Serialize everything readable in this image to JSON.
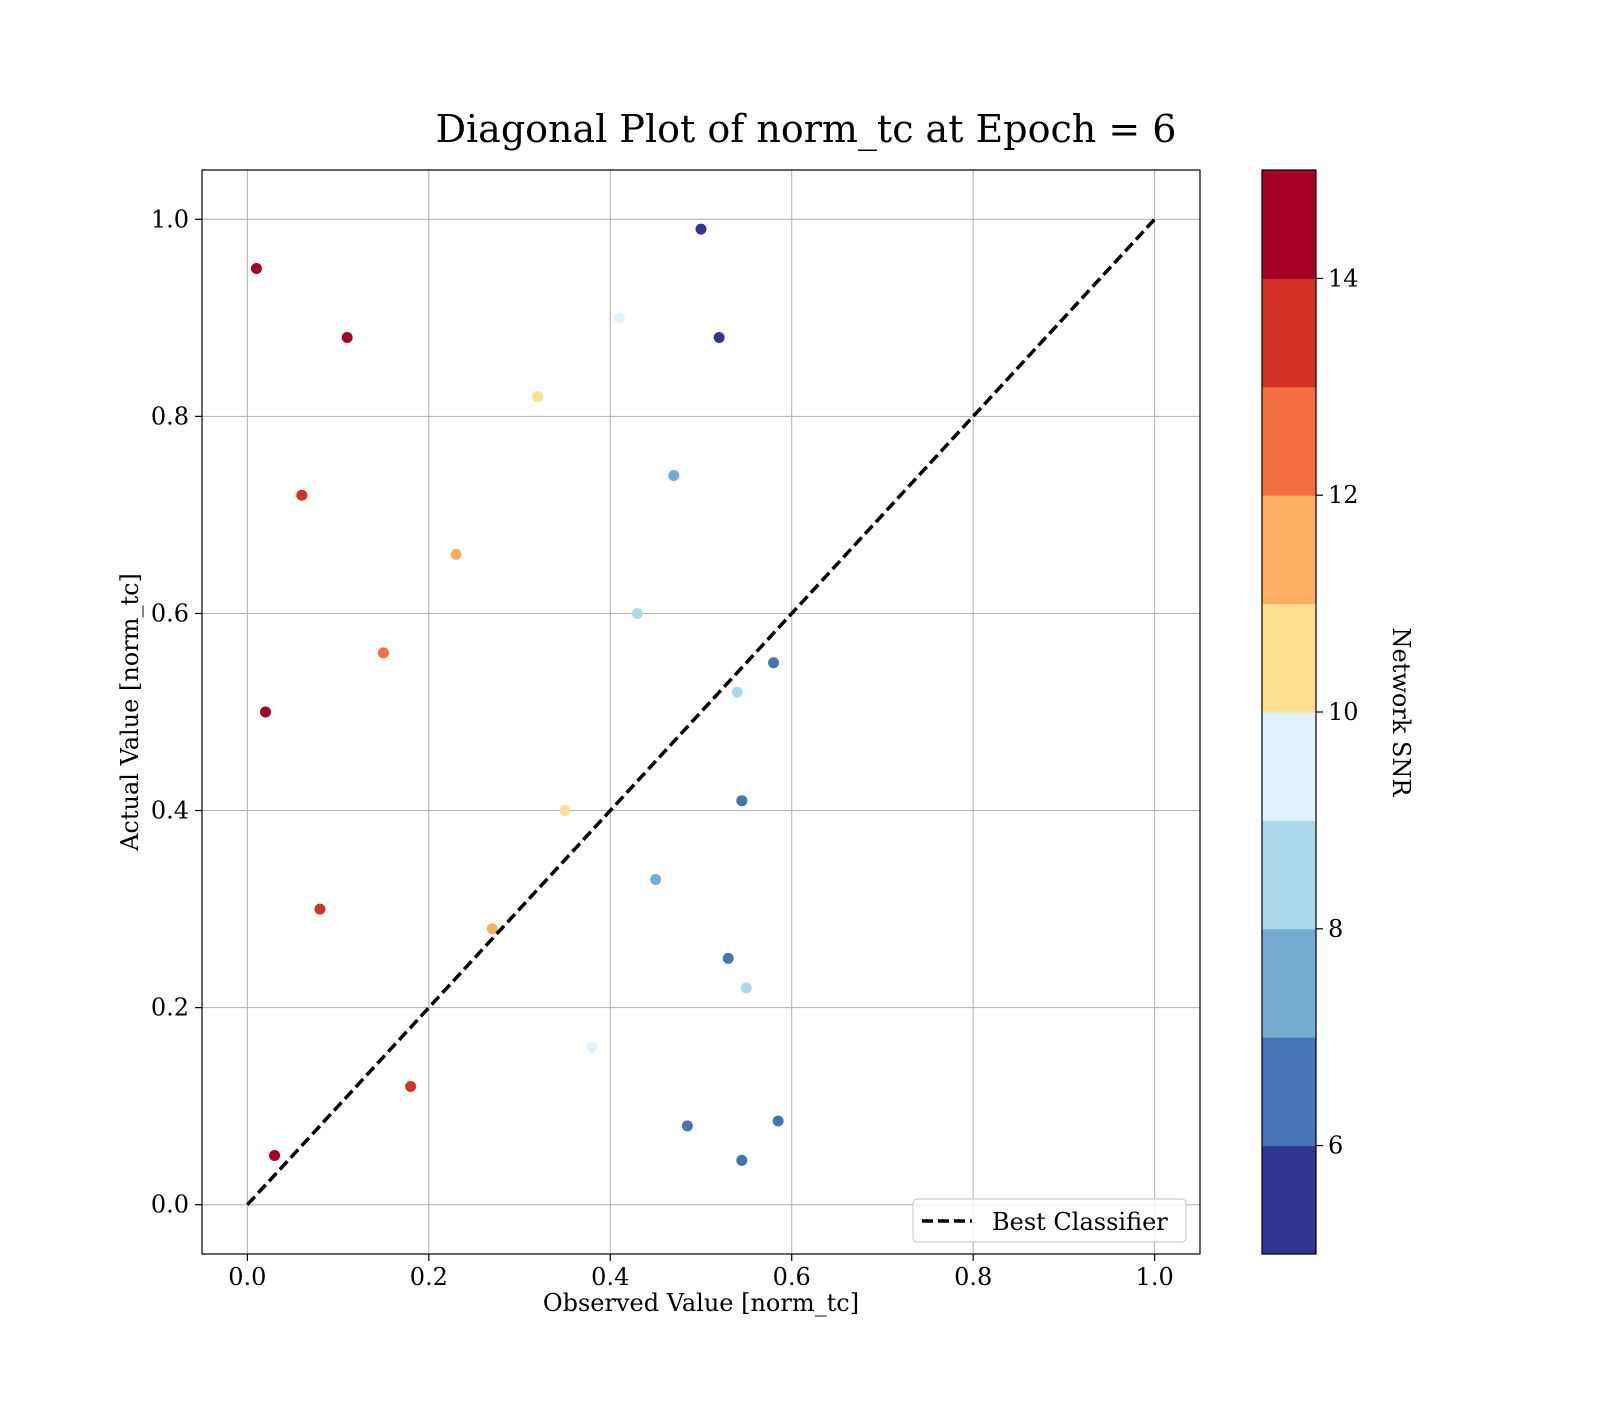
{
  "chart_data": {
    "type": "scatter",
    "title": "Diagonal Plot of norm_tc at Epoch = 6",
    "xlabel": "Observed Value [norm_tc]",
    "ylabel": "Actual Value [norm_tc]",
    "xlim": [
      -0.05,
      1.05
    ],
    "ylim": [
      -0.05,
      1.05
    ],
    "x_ticks": [
      0.0,
      0.2,
      0.4,
      0.6,
      0.8,
      1.0
    ],
    "y_ticks": [
      0.0,
      0.2,
      0.4,
      0.6,
      0.8,
      1.0
    ],
    "x_tick_labels": [
      "0.0",
      "0.2",
      "0.4",
      "0.6",
      "0.8",
      "1.0"
    ],
    "y_tick_labels": [
      "0.0",
      "0.2",
      "0.4",
      "0.6",
      "0.8",
      "1.0"
    ],
    "grid": true,
    "legend": {
      "placement": "lower-right",
      "entries": [
        "Best Classifier"
      ]
    },
    "diagonal_line": {
      "name": "Best Classifier",
      "x": [
        0.0,
        1.0
      ],
      "y": [
        0.0,
        1.0
      ],
      "style": "dashed",
      "color": "#000000"
    },
    "colorbar": {
      "label": "Network SNR",
      "range": [
        5,
        15
      ],
      "ticks": [
        6,
        8,
        10,
        12,
        14
      ],
      "tick_labels": [
        "6",
        "8",
        "10",
        "12",
        "14"
      ],
      "colors": [
        "#313695",
        "#4575b4",
        "#74add1",
        "#abd9e9",
        "#e0f3f8",
        "#fee090",
        "#fdae61",
        "#f46d43",
        "#d73027",
        "#a50026"
      ]
    },
    "points": [
      {
        "x": 0.01,
        "y": 0.95,
        "snr": 14.6
      },
      {
        "x": 0.02,
        "y": 0.5,
        "snr": 14.8
      },
      {
        "x": 0.03,
        "y": 0.05,
        "snr": 14.5
      },
      {
        "x": 0.06,
        "y": 0.72,
        "snr": 13.5
      },
      {
        "x": 0.08,
        "y": 0.3,
        "snr": 13.8
      },
      {
        "x": 0.11,
        "y": 0.88,
        "snr": 14.2
      },
      {
        "x": 0.15,
        "y": 0.56,
        "snr": 12.6
      },
      {
        "x": 0.18,
        "y": 0.12,
        "snr": 13.1
      },
      {
        "x": 0.23,
        "y": 0.66,
        "snr": 11.4
      },
      {
        "x": 0.27,
        "y": 0.28,
        "snr": 11.8
      },
      {
        "x": 0.32,
        "y": 0.82,
        "snr": 10.6
      },
      {
        "x": 0.35,
        "y": 0.4,
        "snr": 10.2
      },
      {
        "x": 0.38,
        "y": 0.16,
        "snr": 9.8
      },
      {
        "x": 0.41,
        "y": 0.9,
        "snr": 9.1
      },
      {
        "x": 0.43,
        "y": 0.6,
        "snr": 8.6
      },
      {
        "x": 0.45,
        "y": 0.33,
        "snr": 7.9
      },
      {
        "x": 0.47,
        "y": 0.74,
        "snr": 7.1
      },
      {
        "x": 0.485,
        "y": 0.08,
        "snr": 6.4
      },
      {
        "x": 0.5,
        "y": 0.99,
        "snr": 5.6
      },
      {
        "x": 0.52,
        "y": 0.88,
        "snr": 5.9
      },
      {
        "x": 0.53,
        "y": 0.25,
        "snr": 6.1
      },
      {
        "x": 0.545,
        "y": 0.41,
        "snr": 6.5
      },
      {
        "x": 0.54,
        "y": 0.52,
        "snr": 8.1
      },
      {
        "x": 0.55,
        "y": 0.22,
        "snr": 8.3
      },
      {
        "x": 0.58,
        "y": 0.55,
        "snr": 6.9
      },
      {
        "x": 0.585,
        "y": 0.085,
        "snr": 6.6
      },
      {
        "x": 0.545,
        "y": 0.045,
        "snr": 6.8
      }
    ]
  }
}
